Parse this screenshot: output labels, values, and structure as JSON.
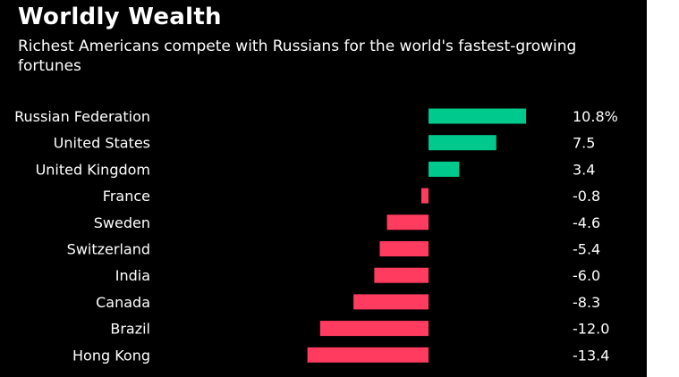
{
  "header": {
    "title": "Worldly Wealth",
    "subtitle": "Richest Americans compete with Russians for the world's fastest-growing fortunes"
  },
  "colors": {
    "background": "#000000",
    "positive": "#00c98d",
    "negative": "#ff3c5f",
    "text": "#ffffff"
  },
  "chart_data": {
    "type": "bar",
    "orientation": "horizontal",
    "categories": [
      "Russian Federation",
      "United States",
      "United Kingdom",
      "France",
      "Sweden",
      "Switzerland",
      "India",
      "Canada",
      "Brazil",
      "Hong Kong"
    ],
    "values": [
      10.8,
      7.5,
      3.4,
      -0.8,
      -4.6,
      -5.4,
      -6.0,
      -8.3,
      -12.0,
      -13.4
    ],
    "value_labels": [
      "10.8%",
      "7.5",
      "3.4",
      "-0.8",
      "-4.6",
      "-5.4",
      "-6.0",
      "-8.3",
      "-12.0",
      "-13.4"
    ],
    "title": "Worldly Wealth",
    "subtitle": "Richest Americans compete with Russians for the world's fastest-growing fortunes",
    "xlabel": "",
    "ylabel": "",
    "legend": "none",
    "grid": false
  }
}
